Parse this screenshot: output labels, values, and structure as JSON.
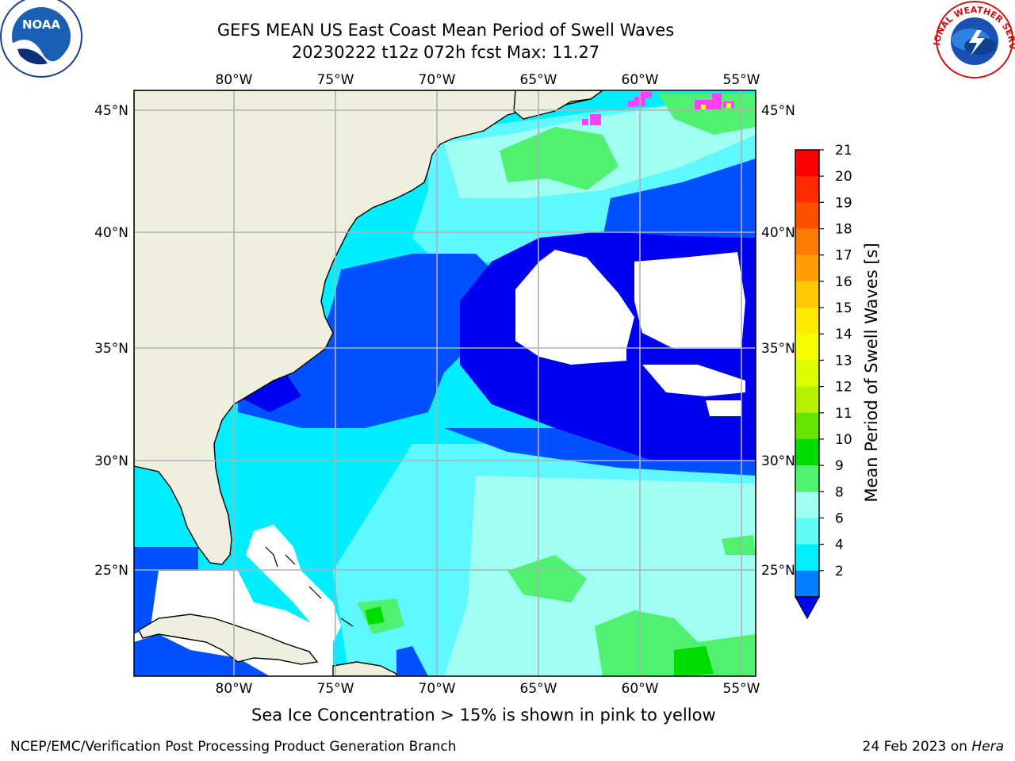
{
  "title": {
    "line1": "GEFS MEAN US East Coast Mean Period of Swell Waves",
    "line2": "20230222 t12z 072h fcst   Max: 11.27"
  },
  "map": {
    "lon_labels": [
      "80°W",
      "75°W",
      "70°W",
      "65°W",
      "60°W",
      "55°W"
    ],
    "lat_labels": [
      "45°N",
      "40°N",
      "35°N",
      "30°N",
      "25°N"
    ],
    "land_color": "#efefdf",
    "background_color": "#ffffff",
    "grid_color": "#b0b0b0"
  },
  "colorbar": {
    "label": "Mean Period of Swell Waves [s]",
    "ticks": [
      "21",
      "20",
      "19",
      "18",
      "17",
      "16",
      "15",
      "14",
      "13",
      "12",
      "11",
      "10",
      "9",
      "8",
      "6",
      "4",
      "2"
    ],
    "colors_top_to_bottom": [
      "#ff0000",
      "#ff2a00",
      "#ff5000",
      "#ff7a00",
      "#ffa000",
      "#ffc800",
      "#ffec00",
      "#f5ff00",
      "#dcff00",
      "#b4f000",
      "#64e600",
      "#00dc00",
      "#50f070",
      "#a0fff0",
      "#5ffcf8",
      "#00f0ff",
      "#0080ff"
    ],
    "extend_color": "#0000ff"
  },
  "legend_colors": {
    "deep_blue": "#0000f0",
    "medium_blue": "#0050ff",
    "cyan": "#00eeff",
    "light_cyan": "#5ff8ff",
    "pale_cyan": "#a0fff0",
    "green": "#50f070",
    "bright_green": "#00dc00",
    "ice_pink": "#ff40ff"
  },
  "footer": {
    "note": "Sea Ice Concentration > 15% is shown in pink to yellow",
    "credit_left": "NCEP/EMC/Verification Post Processing Product Generation Branch",
    "credit_right_prefix": "24 Feb 2023 on ",
    "credit_right_host": "Hera"
  },
  "logos": {
    "left": "NOAA",
    "right_arc": "NATIONAL WEATHER SERVICE"
  }
}
